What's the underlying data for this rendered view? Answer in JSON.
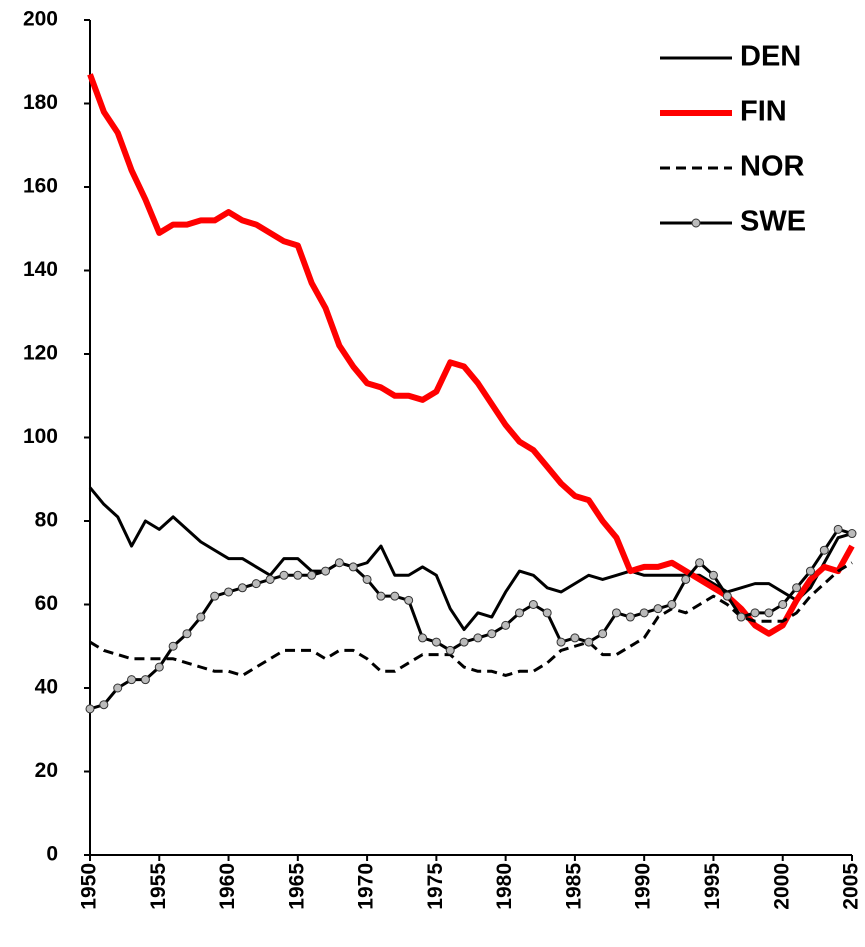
{
  "chart_data": {
    "type": "line",
    "x": [
      1950,
      1951,
      1952,
      1953,
      1954,
      1955,
      1956,
      1957,
      1958,
      1959,
      1960,
      1961,
      1962,
      1963,
      1964,
      1965,
      1966,
      1967,
      1968,
      1969,
      1970,
      1971,
      1972,
      1973,
      1974,
      1975,
      1976,
      1977,
      1978,
      1979,
      1980,
      1981,
      1982,
      1983,
      1984,
      1985,
      1986,
      1987,
      1988,
      1989,
      1990,
      1991,
      1992,
      1993,
      1994,
      1995,
      1996,
      1997,
      1998,
      1999,
      2000,
      2001,
      2002,
      2003,
      2004,
      2005
    ],
    "xlim": [
      1950,
      2005
    ],
    "xticks": [
      1950,
      1955,
      1960,
      1965,
      1970,
      1975,
      1980,
      1985,
      1990,
      1995,
      2000,
      2005
    ],
    "ylim": [
      0,
      200
    ],
    "yticks": [
      0,
      20,
      40,
      60,
      80,
      100,
      120,
      140,
      160,
      180,
      200
    ],
    "grid": false,
    "legend": "top-right",
    "series": [
      {
        "name": "DEN",
        "color": "#000000",
        "line_width": 3,
        "dashed": false,
        "markers": false,
        "values": [
          88,
          84,
          81,
          74,
          80,
          78,
          81,
          78,
          75,
          73,
          71,
          71,
          69,
          67,
          71,
          71,
          68,
          68,
          70,
          69,
          70,
          74,
          67,
          67,
          69,
          67,
          59,
          54,
          58,
          57,
          63,
          68,
          67,
          64,
          63,
          65,
          67,
          66,
          67,
          68,
          67,
          67,
          67,
          67,
          67,
          65,
          63,
          64,
          65,
          65,
          63,
          61,
          64,
          70,
          76,
          77
        ]
      },
      {
        "name": "FIN",
        "color": "#ff0000",
        "line_width": 6,
        "dashed": false,
        "markers": false,
        "values": [
          187,
          178,
          173,
          164,
          157,
          149,
          151,
          151,
          152,
          152,
          154,
          152,
          151,
          149,
          147,
          146,
          137,
          131,
          122,
          117,
          113,
          112,
          110,
          110,
          109,
          111,
          118,
          117,
          113,
          108,
          103,
          99,
          97,
          93,
          89,
          86,
          85,
          80,
          76,
          68,
          69,
          69,
          70,
          68,
          66,
          64,
          62,
          59,
          55,
          53,
          55,
          61,
          66,
          69,
          68,
          74
        ]
      },
      {
        "name": "NOR",
        "color": "#000000",
        "line_width": 3,
        "dashed": true,
        "markers": false,
        "values": [
          51,
          49,
          48,
          47,
          47,
          47,
          47,
          46,
          45,
          44,
          44,
          43,
          45,
          47,
          49,
          49,
          49,
          47,
          49,
          49,
          47,
          44,
          44,
          46,
          48,
          48,
          48,
          45,
          44,
          44,
          43,
          44,
          44,
          46,
          49,
          50,
          51,
          48,
          48,
          50,
          52,
          57,
          59,
          58,
          60,
          62,
          60,
          57,
          56,
          56,
          56,
          58,
          62,
          65,
          68,
          70
        ]
      },
      {
        "name": "SWE",
        "color": "#000000",
        "line_width": 3,
        "dashed": false,
        "markers": true,
        "values": [
          35,
          36,
          40,
          42,
          42,
          45,
          50,
          53,
          57,
          62,
          63,
          64,
          65,
          66,
          67,
          67,
          67,
          68,
          70,
          69,
          66,
          62,
          62,
          61,
          52,
          51,
          49,
          51,
          52,
          53,
          55,
          58,
          60,
          58,
          51,
          52,
          51,
          53,
          58,
          57,
          58,
          59,
          60,
          66,
          70,
          67,
          62,
          57,
          58,
          58,
          60,
          64,
          68,
          73,
          78,
          77
        ]
      }
    ]
  }
}
